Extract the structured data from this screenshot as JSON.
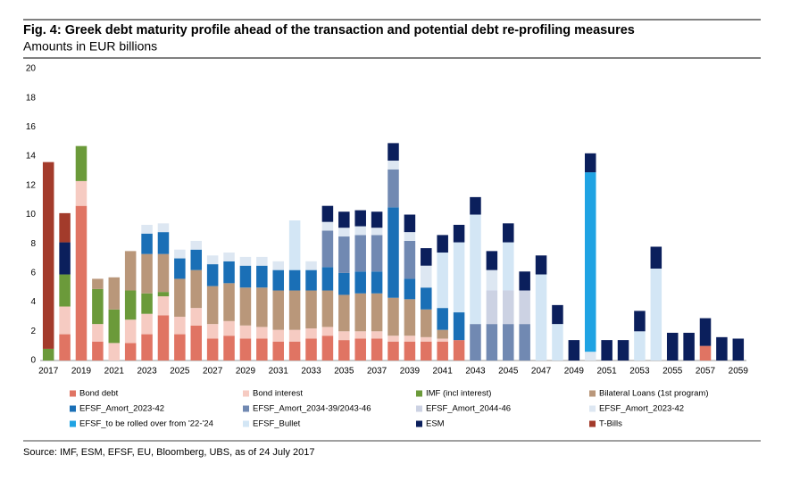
{
  "chart_data": {
    "type": "stacked_bar",
    "title": "Fig. 4: Greek debt maturity profile ahead of the transaction and potential debt re-profiling measures",
    "subtitle": "Amounts in EUR billions",
    "source": "Source: IMF, ESM, EFSF, EU, Bloomberg, UBS,  as of 24 July 2017",
    "categories": [
      "2017",
      null,
      "2019",
      null,
      "2021",
      null,
      "2023",
      null,
      "2025",
      null,
      "2027",
      null,
      "2029",
      null,
      "2031",
      null,
      "2033",
      null,
      "2035",
      null,
      "2037",
      null,
      "2039",
      null,
      "2041",
      null,
      "2043",
      null,
      "2045",
      null,
      "2047",
      null,
      "2049",
      null,
      "2051",
      null,
      "2053",
      null,
      "2055",
      null,
      "2057",
      null,
      "2059"
    ],
    "ylim": [
      0,
      20
    ],
    "yticks": [
      0,
      2,
      4,
      6,
      8,
      10,
      12,
      14,
      16,
      18,
      20
    ],
    "grid": false,
    "series": [
      {
        "name": "Bond debt",
        "color": "#e07463",
        "values": [
          0,
          1.8,
          10.6,
          1.3,
          0,
          1.2,
          1.8,
          3.1,
          1.8,
          2.4,
          1.5,
          1.7,
          1.5,
          1.5,
          1.3,
          1.3,
          1.5,
          1.7,
          1.4,
          1.5,
          1.5,
          1.3,
          1.3,
          1.3,
          1.3,
          1.4,
          0,
          0,
          0,
          0,
          0,
          0,
          0,
          0,
          0,
          0,
          0,
          0,
          0,
          0,
          1.0,
          0,
          0
        ]
      },
      {
        "name": "Bond interest",
        "color": "#f6cbc2",
        "values": [
          0,
          1.9,
          1.7,
          1.2,
          1.2,
          1.6,
          1.4,
          1.3,
          1.2,
          1.2,
          1.0,
          1.0,
          0.9,
          0.8,
          0.8,
          0.8,
          0.7,
          0.6,
          0.6,
          0.5,
          0.5,
          0.4,
          0.4,
          0.3,
          0.2,
          0,
          0,
          0,
          0,
          0,
          0,
          0,
          0,
          0,
          0,
          0,
          0,
          0,
          0,
          0,
          0,
          0,
          0
        ]
      },
      {
        "name": "IMF (incl interest)",
        "color": "#6b9a3a",
        "values": [
          0.8,
          2.2,
          2.4,
          2.4,
          2.3,
          2.0,
          1.4,
          0.3,
          0,
          0,
          0,
          0,
          0,
          0,
          0,
          0,
          0,
          0,
          0,
          0,
          0,
          0,
          0,
          0,
          0,
          0,
          0,
          0,
          0,
          0,
          0,
          0,
          0,
          0,
          0,
          0,
          0,
          0,
          0,
          0,
          0,
          0,
          0
        ]
      },
      {
        "name": "Bilateral Loans (1st program)",
        "color": "#b9977a",
        "values": [
          0,
          0,
          0,
          0.7,
          2.2,
          2.7,
          2.7,
          2.6,
          2.6,
          2.6,
          2.6,
          2.6,
          2.6,
          2.7,
          2.7,
          2.7,
          2.6,
          2.5,
          2.5,
          2.6,
          2.6,
          2.6,
          2.5,
          1.9,
          0.6,
          0,
          0,
          0,
          0,
          0,
          0,
          0,
          0,
          0,
          0,
          0,
          0,
          0,
          0,
          0,
          0,
          0,
          0
        ]
      },
      {
        "name": "EFSF_Amort_2023-42",
        "color": "#1a6fb6",
        "values": [
          0,
          0,
          0,
          0,
          0,
          0,
          1.4,
          1.5,
          1.4,
          1.4,
          1.5,
          1.5,
          1.5,
          1.5,
          1.4,
          1.4,
          1.4,
          1.6,
          1.5,
          1.5,
          1.5,
          6.2,
          1.4,
          1.5,
          1.5,
          1.9,
          0,
          0,
          0,
          0,
          0,
          0,
          0,
          0,
          0,
          0,
          0,
          0,
          0,
          0,
          0,
          0,
          0
        ]
      },
      {
        "name": "EFSF_Amort_2034-39/2043-46",
        "color": "#7189b2",
        "values": [
          0,
          0,
          0,
          0,
          0,
          0,
          0,
          0,
          0,
          0,
          0,
          0,
          0,
          0,
          0,
          0,
          0,
          2.5,
          2.5,
          2.5,
          2.5,
          2.6,
          2.6,
          0,
          0,
          0,
          2.5,
          2.5,
          2.5,
          2.5,
          0,
          0,
          0,
          0,
          0,
          0,
          0,
          0,
          0,
          0,
          0,
          0,
          0
        ]
      },
      {
        "name": "EFSF_Amort_2044-46",
        "color": "#ccd2e3",
        "values": [
          0,
          0,
          0,
          0,
          0,
          0,
          0,
          0,
          0,
          0,
          0,
          0,
          0,
          0,
          0,
          0,
          0,
          0,
          0,
          0,
          0,
          0,
          0,
          0,
          0,
          0,
          0,
          2.3,
          2.3,
          2.3,
          0,
          0,
          0,
          0,
          0,
          0,
          0,
          0,
          0,
          0,
          0,
          0,
          0
        ]
      },
      {
        "name": "EFSF_Amort_2023-42",
        "color": "#dde7f2",
        "values": [
          0,
          0,
          0,
          0,
          0,
          0,
          0.6,
          0.6,
          0.6,
          0.6,
          0.6,
          0.6,
          0.6,
          0.6,
          0.6,
          0,
          0.6,
          0.6,
          0.6,
          0.6,
          0.5,
          0.6,
          0.6,
          1.5,
          0,
          0,
          0,
          1.4,
          0,
          0,
          0,
          0,
          0,
          0.6,
          0,
          0,
          0,
          0,
          0,
          0,
          0,
          0,
          0
        ]
      },
      {
        "name": "EFSF_to be rolled over from '22-'24",
        "color": "#1fa3e3",
        "values": [
          0,
          0,
          0,
          0,
          0,
          0,
          0,
          0,
          0,
          0,
          0,
          0,
          0,
          0,
          0,
          0,
          0,
          0,
          0,
          0,
          0,
          0,
          0,
          0,
          0,
          0,
          0,
          0,
          0,
          0,
          0,
          0,
          0,
          12.3,
          0,
          0,
          0,
          0,
          0,
          0,
          0,
          0,
          0
        ]
      },
      {
        "name": "EFSF_Bullet",
        "color": "#d3e6f5",
        "values": [
          0,
          0,
          0,
          0,
          0,
          0,
          0,
          0,
          0,
          0,
          0,
          0,
          0,
          0,
          0,
          3.4,
          0,
          0,
          0,
          0,
          0,
          0,
          0,
          0,
          3.8,
          4.8,
          7.5,
          0,
          3.3,
          0,
          5.9,
          2.5,
          0,
          0,
          0,
          0,
          2.0,
          6.3,
          0,
          0,
          0,
          0,
          0
        ]
      },
      {
        "name": "ESM",
        "color": "#0b1f5c",
        "values": [
          0,
          2.2,
          0,
          0,
          0,
          0,
          0,
          0,
          0,
          0,
          0,
          0,
          0,
          0,
          0,
          0,
          0,
          1.1,
          1.1,
          1.1,
          1.1,
          1.2,
          1.2,
          1.2,
          1.2,
          1.2,
          1.2,
          1.3,
          1.3,
          1.3,
          1.3,
          1.3,
          1.4,
          1.3,
          1.4,
          1.4,
          1.4,
          1.5,
          1.9,
          1.9,
          1.9,
          1.6,
          1.5
        ]
      },
      {
        "name": "T-Bills",
        "color": "#a33b2b",
        "values": [
          12.8,
          2.0,
          0,
          0,
          0,
          0,
          0,
          0,
          0,
          0,
          0,
          0,
          0,
          0,
          0,
          0,
          0,
          0,
          0,
          0,
          0,
          0,
          0,
          0,
          0,
          0,
          0,
          0,
          0,
          0,
          0,
          0,
          0,
          0,
          0,
          0,
          0,
          0,
          0,
          0,
          0,
          0,
          0
        ]
      }
    ]
  }
}
